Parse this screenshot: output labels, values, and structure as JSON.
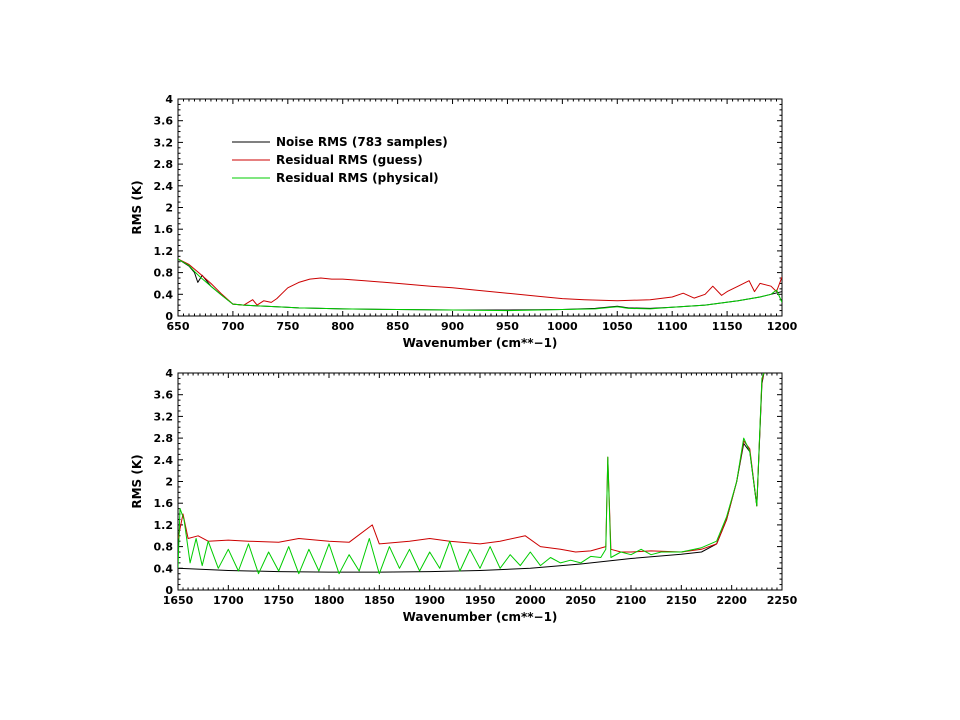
{
  "chart_data": [
    {
      "type": "line",
      "xlabel": "Wavenumber (cm**−1)",
      "ylabel": "RMS (K)",
      "xlim": [
        650,
        1200
      ],
      "ylim": [
        0,
        4
      ],
      "xticks": [
        650,
        700,
        750,
        800,
        850,
        900,
        950,
        1000,
        1050,
        1100,
        1150,
        1200
      ],
      "yticks": [
        0,
        0.4,
        0.8,
        1.2,
        1.6,
        2,
        2.4,
        2.8,
        3.2,
        3.6,
        4
      ],
      "legend": "top-left",
      "series": [
        {
          "name": "Noise RMS (783 samples)",
          "color": "#000000",
          "x": [
            650,
            660,
            665,
            668,
            672,
            680,
            690,
            700,
            710,
            720,
            740,
            760,
            780,
            800,
            850,
            900,
            950,
            1000,
            1030,
            1050,
            1060,
            1080,
            1100,
            1130,
            1160,
            1180,
            1190,
            1200
          ],
          "y": [
            1.05,
            0.92,
            0.8,
            0.62,
            0.75,
            0.55,
            0.38,
            0.22,
            0.2,
            0.19,
            0.17,
            0.15,
            0.14,
            0.13,
            0.12,
            0.11,
            0.11,
            0.12,
            0.14,
            0.18,
            0.15,
            0.14,
            0.16,
            0.2,
            0.28,
            0.35,
            0.4,
            0.45
          ]
        },
        {
          "name": "Residual RMS (guess)",
          "color": "#cc0000",
          "x": [
            650,
            660,
            670,
            680,
            690,
            700,
            710,
            718,
            722,
            728,
            735,
            740,
            745,
            750,
            760,
            770,
            780,
            790,
            800,
            820,
            850,
            880,
            900,
            920,
            950,
            980,
            1000,
            1020,
            1050,
            1080,
            1100,
            1110,
            1120,
            1130,
            1137,
            1145,
            1150,
            1160,
            1170,
            1175,
            1180,
            1190,
            1195,
            1200
          ],
          "y": [
            1.05,
            0.95,
            0.78,
            0.6,
            0.4,
            0.22,
            0.2,
            0.3,
            0.2,
            0.28,
            0.25,
            0.32,
            0.42,
            0.52,
            0.62,
            0.68,
            0.7,
            0.68,
            0.68,
            0.65,
            0.6,
            0.55,
            0.52,
            0.48,
            0.42,
            0.36,
            0.32,
            0.3,
            0.28,
            0.3,
            0.35,
            0.42,
            0.33,
            0.4,
            0.55,
            0.38,
            0.45,
            0.55,
            0.65,
            0.45,
            0.6,
            0.55,
            0.45,
            0.72
          ]
        },
        {
          "name": "Residual RMS (physical)",
          "color": "#00cc00",
          "x": [
            650,
            660,
            665,
            670,
            680,
            690,
            700,
            710,
            720,
            740,
            760,
            780,
            800,
            850,
            900,
            950,
            1000,
            1030,
            1050,
            1060,
            1080,
            1100,
            1130,
            1160,
            1180,
            1190,
            1195,
            1200
          ],
          "y": [
            1.05,
            0.93,
            0.82,
            0.72,
            0.55,
            0.38,
            0.22,
            0.2,
            0.19,
            0.17,
            0.15,
            0.14,
            0.13,
            0.12,
            0.11,
            0.1,
            0.12,
            0.13,
            0.17,
            0.14,
            0.13,
            0.16,
            0.2,
            0.28,
            0.35,
            0.4,
            0.48,
            0.25
          ]
        }
      ]
    },
    {
      "type": "line",
      "xlabel": "Wavenumber (cm**−1)",
      "ylabel": "RMS (K)",
      "xlim": [
        1650,
        2250
      ],
      "ylim": [
        0,
        4
      ],
      "xticks": [
        1650,
        1700,
        1750,
        1800,
        1850,
        1900,
        1950,
        2000,
        2050,
        2100,
        2150,
        2200,
        2250
      ],
      "yticks": [
        0,
        0.4,
        0.8,
        1.2,
        1.6,
        2,
        2.4,
        2.8,
        3.2,
        3.6,
        4
      ],
      "series": [
        {
          "name": "Noise RMS (783 samples)",
          "color": "#000000",
          "x": [
            1650,
            1700,
            1750,
            1800,
            1850,
            1900,
            1950,
            2000,
            2050,
            2100,
            2150,
            2170,
            2185,
            2195,
            2205,
            2212,
            2218,
            2225,
            2230,
            2232
          ],
          "y": [
            0.4,
            0.36,
            0.34,
            0.33,
            0.33,
            0.34,
            0.36,
            0.4,
            0.48,
            0.58,
            0.66,
            0.7,
            0.85,
            1.3,
            2.0,
            2.7,
            2.55,
            1.55,
            3.8,
            4.0
          ]
        },
        {
          "name": "Residual RMS (guess)",
          "color": "#cc0000",
          "x": [
            1650,
            1655,
            1660,
            1670,
            1680,
            1700,
            1720,
            1750,
            1770,
            1800,
            1820,
            1843,
            1850,
            1880,
            1900,
            1920,
            1950,
            1970,
            1995,
            2010,
            2030,
            2045,
            2060,
            2075,
            2077,
            2080,
            2090,
            2100,
            2120,
            2150,
            2170,
            2185,
            2195,
            2205,
            2212,
            2218,
            2225,
            2230,
            2232
          ],
          "y": [
            0.95,
            1.4,
            0.95,
            1.0,
            0.9,
            0.92,
            0.9,
            0.88,
            0.95,
            0.9,
            0.88,
            1.2,
            0.85,
            0.9,
            0.95,
            0.9,
            0.85,
            0.9,
            1.0,
            0.8,
            0.75,
            0.7,
            0.72,
            0.8,
            2.45,
            0.75,
            0.7,
            0.7,
            0.72,
            0.7,
            0.75,
            0.85,
            1.3,
            2.0,
            2.75,
            2.6,
            1.55,
            3.85,
            4.0
          ]
        },
        {
          "name": "Residual RMS (physical)",
          "color": "#00cc00",
          "x": [
            1650,
            1652,
            1656,
            1662,
            1668,
            1674,
            1680,
            1690,
            1700,
            1710,
            1720,
            1730,
            1740,
            1750,
            1760,
            1770,
            1780,
            1790,
            1800,
            1810,
            1820,
            1830,
            1840,
            1850,
            1860,
            1870,
            1880,
            1890,
            1900,
            1910,
            1920,
            1930,
            1940,
            1950,
            1960,
            1970,
            1980,
            1990,
            2000,
            2010,
            2020,
            2030,
            2040,
            2050,
            2060,
            2070,
            2075,
            2077,
            2080,
            2090,
            2100,
            2110,
            2120,
            2130,
            2150,
            2170,
            2185,
            2195,
            2205,
            2212,
            2218,
            2225,
            2230,
            2232
          ],
          "y": [
            0.4,
            1.5,
            1.3,
            0.5,
            0.95,
            0.45,
            0.9,
            0.4,
            0.75,
            0.35,
            0.85,
            0.3,
            0.7,
            0.35,
            0.8,
            0.3,
            0.75,
            0.35,
            0.85,
            0.3,
            0.65,
            0.35,
            0.95,
            0.3,
            0.8,
            0.4,
            0.75,
            0.35,
            0.7,
            0.4,
            0.9,
            0.35,
            0.75,
            0.4,
            0.8,
            0.4,
            0.65,
            0.45,
            0.7,
            0.45,
            0.6,
            0.5,
            0.55,
            0.5,
            0.62,
            0.6,
            0.75,
            2.45,
            0.6,
            0.7,
            0.65,
            0.75,
            0.65,
            0.7,
            0.7,
            0.78,
            0.9,
            1.35,
            2.0,
            2.8,
            2.55,
            1.55,
            3.9,
            4.0
          ]
        }
      ]
    }
  ]
}
